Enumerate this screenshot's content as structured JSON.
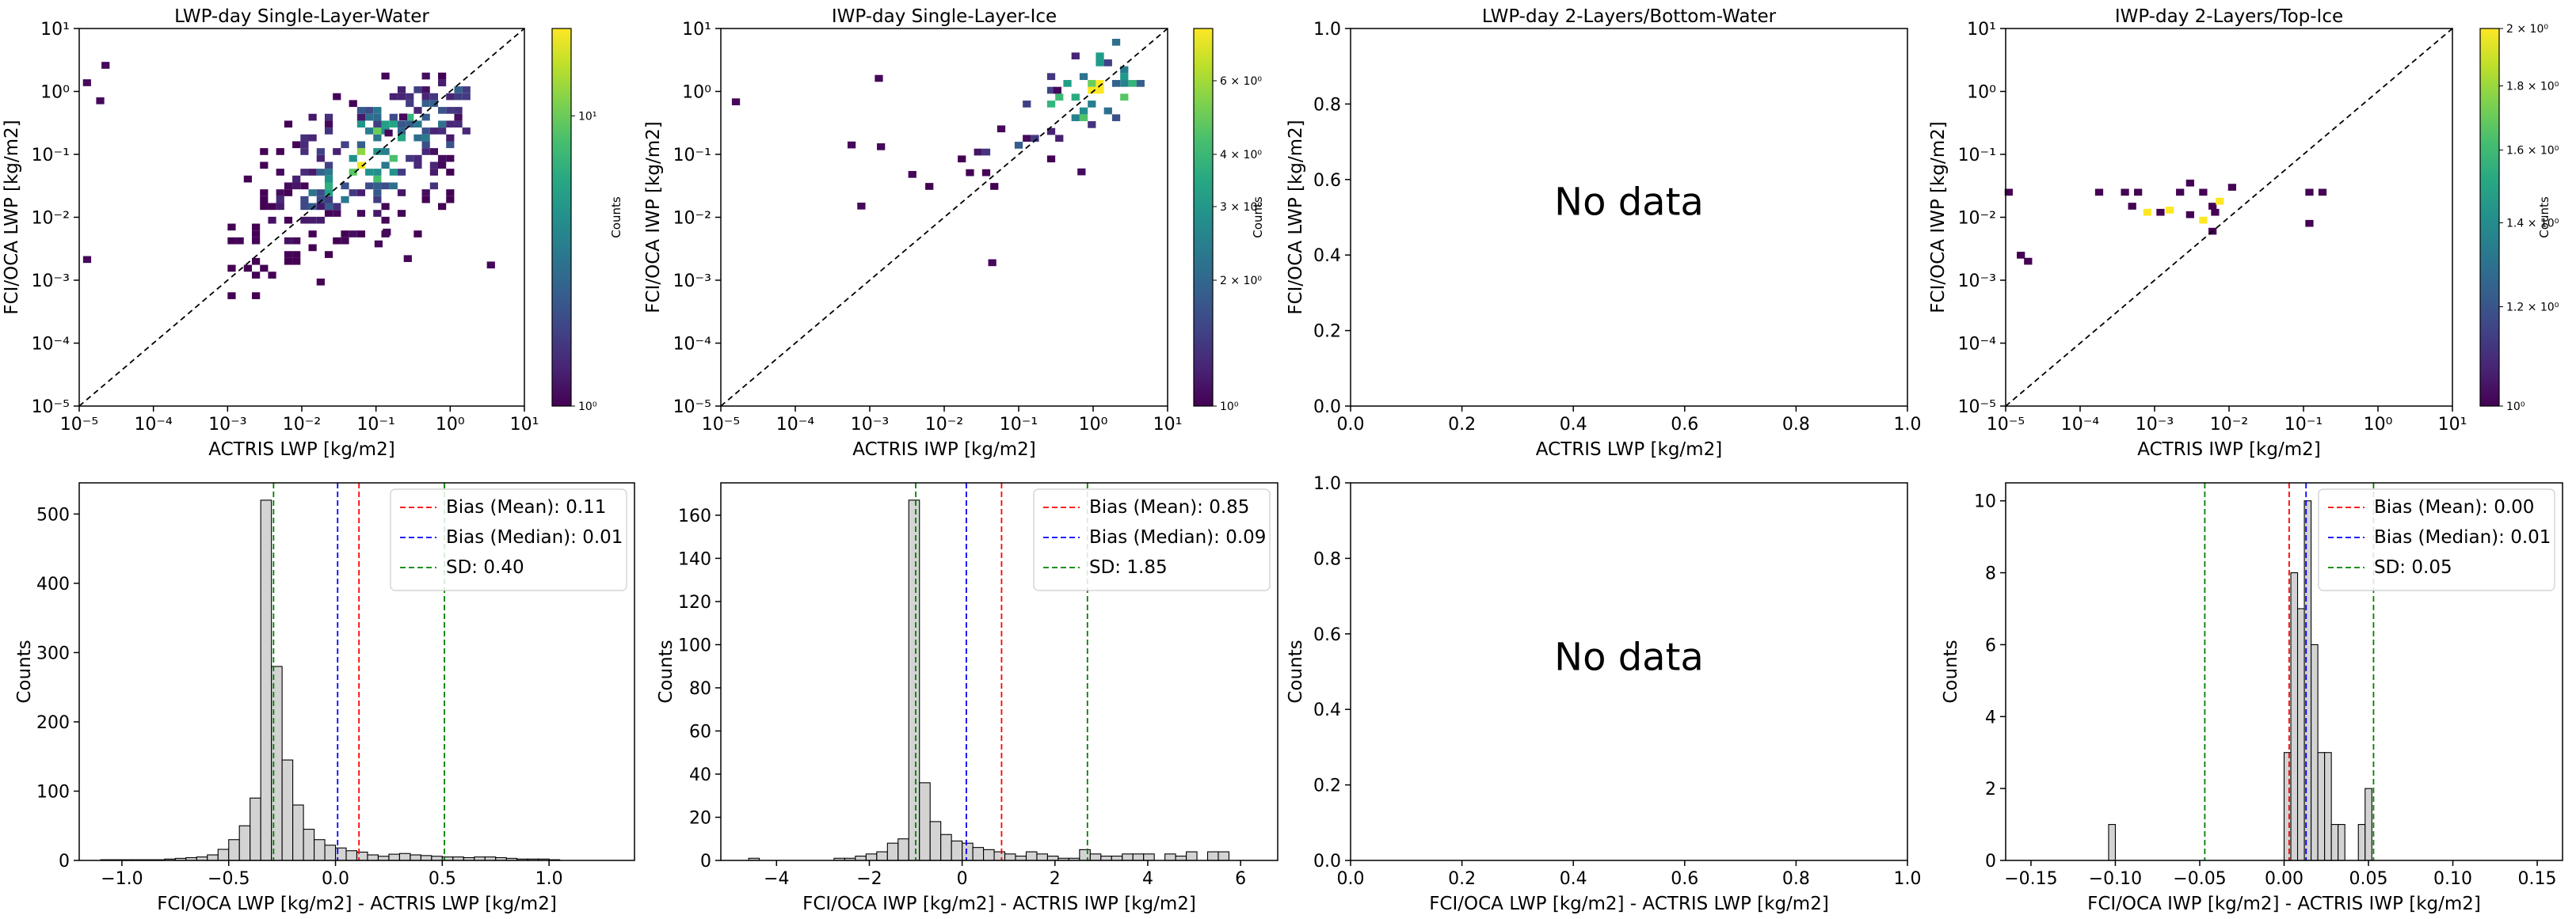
{
  "figure": {
    "colorbar_label": "Counts",
    "no_data_label": "No data"
  },
  "chart_data": [
    {
      "id": "p1",
      "type": "heatmap",
      "title": "LWP-day Single-Layer-Water",
      "xlabel": "ACTRIS LWP [kg/m2]",
      "ylabel": "FCI/OCA LWP [kg/m2]",
      "xlim": [
        1e-05,
        10
      ],
      "ylim": [
        1e-05,
        10
      ],
      "xscale": "log",
      "yscale": "log",
      "xticks": [
        "10^-5",
        "10^-4",
        "10^-3",
        "10^-2",
        "10^-1",
        "10^0",
        "10^1"
      ],
      "yticks": [
        "10^-5",
        "10^-4",
        "10^-3",
        "10^-2",
        "10^-1",
        "10^0",
        "10^1"
      ],
      "one_to_one_line": true,
      "colormap": "viridis",
      "colorbar": {
        "scale": "log",
        "range": [
          1,
          20
        ],
        "ticks": [
          "10^0",
          "10^1"
        ],
        "label": "Counts"
      },
      "cluster": {
        "x_range": [
          0.001,
          2
        ],
        "y_range": [
          0.0005,
          2
        ],
        "peak": [
          0.1,
          0.1
        ]
      }
    },
    {
      "id": "p2",
      "type": "heatmap",
      "title": "IWP-day Single-Layer-Ice",
      "xlabel": "ACTRIS IWP [kg/m2]",
      "ylabel": "FCI/OCA IWP [kg/m2]",
      "xlim": [
        1e-05,
        10
      ],
      "ylim": [
        1e-05,
        10
      ],
      "xscale": "log",
      "yscale": "log",
      "xticks": [
        "10^-5",
        "10^-4",
        "10^-3",
        "10^-2",
        "10^-1",
        "10^0",
        "10^1"
      ],
      "yticks": [
        "10^-5",
        "10^-4",
        "10^-3",
        "10^-2",
        "10^-1",
        "10^0",
        "10^1"
      ],
      "one_to_one_line": true,
      "colormap": "viridis",
      "colorbar": {
        "scale": "log",
        "range": [
          1,
          8
        ],
        "ticks": [
          "10^0",
          "2 × 10^0",
          "3 × 10^0",
          "4 × 10^0",
          "6 × 10^0"
        ],
        "label": "Counts"
      },
      "cluster": {
        "x_range": [
          0.0001,
          5
        ],
        "y_range": [
          0.01,
          7
        ],
        "peak": [
          1,
          1
        ]
      }
    },
    {
      "id": "p3",
      "type": "heatmap",
      "title": "LWP-day 2-Layers/Bottom-Water",
      "xlabel": "ACTRIS LWP [kg/m2]",
      "ylabel": "FCI/OCA LWP [kg/m2]",
      "xlim": [
        0,
        1
      ],
      "ylim": [
        0,
        1
      ],
      "xticks": [
        "0.0",
        "0.2",
        "0.4",
        "0.6",
        "0.8",
        "1.0"
      ],
      "yticks": [
        "0.0",
        "0.2",
        "0.4",
        "0.6",
        "0.8",
        "1.0"
      ],
      "annotation": "No data"
    },
    {
      "id": "p4",
      "type": "heatmap",
      "title": "IWP-day 2-Layers/Top-Ice",
      "xlabel": "ACTRIS IWP [kg/m2]",
      "ylabel": "FCI/OCA IWP [kg/m2]",
      "xlim": [
        1e-05,
        10
      ],
      "ylim": [
        1e-05,
        10
      ],
      "xscale": "log",
      "yscale": "log",
      "xticks": [
        "10^-5",
        "10^-4",
        "10^-3",
        "10^-2",
        "10^-1",
        "10^0",
        "10^1"
      ],
      "yticks": [
        "10^-5",
        "10^-4",
        "10^-3",
        "10^-2",
        "10^-1",
        "10^0",
        "10^1"
      ],
      "one_to_one_line": true,
      "colormap": "viridis",
      "colorbar": {
        "scale": "log",
        "range": [
          1,
          2
        ],
        "ticks": [
          "10^0",
          "1.2 × 10^0",
          "1.4 × 10^0",
          "1.6 × 10^0",
          "1.8 × 10^0",
          "2 × 10^0"
        ],
        "label": "Counts"
      },
      "points": [
        {
          "x": 1.1e-05,
          "y": 0.025,
          "c": 1
        },
        {
          "x": 1.6e-05,
          "y": 0.0025,
          "c": 1
        },
        {
          "x": 2e-05,
          "y": 0.002,
          "c": 1
        },
        {
          "x": 0.00018,
          "y": 0.025,
          "c": 1
        },
        {
          "x": 0.0004,
          "y": 0.025,
          "c": 1
        },
        {
          "x": 0.0006,
          "y": 0.025,
          "c": 1
        },
        {
          "x": 0.0005,
          "y": 0.015,
          "c": 1
        },
        {
          "x": 0.0008,
          "y": 0.012,
          "c": 2
        },
        {
          "x": 0.0012,
          "y": 0.012,
          "c": 1
        },
        {
          "x": 0.0016,
          "y": 0.013,
          "c": 2
        },
        {
          "x": 0.0022,
          "y": 0.025,
          "c": 1
        },
        {
          "x": 0.003,
          "y": 0.035,
          "c": 1
        },
        {
          "x": 0.003,
          "y": 0.011,
          "c": 1
        },
        {
          "x": 0.0045,
          "y": 0.025,
          "c": 1
        },
        {
          "x": 0.0045,
          "y": 0.009,
          "c": 2
        },
        {
          "x": 0.006,
          "y": 0.015,
          "c": 1
        },
        {
          "x": 0.0065,
          "y": 0.012,
          "c": 1
        },
        {
          "x": 0.0075,
          "y": 0.018,
          "c": 2
        },
        {
          "x": 0.006,
          "y": 0.006,
          "c": 1
        },
        {
          "x": 0.011,
          "y": 0.03,
          "c": 1
        },
        {
          "x": 0.12,
          "y": 0.025,
          "c": 1
        },
        {
          "x": 0.18,
          "y": 0.025,
          "c": 1
        },
        {
          "x": 0.12,
          "y": 0.008,
          "c": 1
        }
      ]
    },
    {
      "id": "p5",
      "type": "bar",
      "histogram": true,
      "xlabel": "FCI/OCA LWP [kg/m2] - ACTRIS LWP [kg/m2]",
      "ylabel": "Counts",
      "xlim": [
        -1.2,
        1.4
      ],
      "ylim": [
        0,
        545
      ],
      "xticks": [
        -1.0,
        -0.5,
        0.0,
        0.5,
        1.0
      ],
      "yticks": [
        0,
        100,
        200,
        300,
        400,
        500
      ],
      "bin_start": -1.1,
      "bin_width": 0.05,
      "values": [
        1,
        1,
        1,
        1,
        1,
        1,
        2,
        3,
        4,
        5,
        8,
        16,
        30,
        50,
        90,
        520,
        280,
        145,
        80,
        45,
        30,
        22,
        18,
        14,
        12,
        8,
        6,
        9,
        10,
        8,
        7,
        6,
        5,
        5,
        4,
        5,
        5,
        4,
        3,
        2,
        2,
        2,
        1
      ],
      "bias_mean": 0.11,
      "bias_median": 0.01,
      "sd": 0.4,
      "lines": [
        {
          "value": 0.11,
          "color": "#ff0000"
        },
        {
          "value": 0.01,
          "color": "#0000ff"
        },
        {
          "value": -0.29,
          "color": "#008000"
        },
        {
          "value": 0.51,
          "color": "#008000"
        }
      ],
      "legend": [
        "Bias (Mean): 0.11",
        "Bias (Median): 0.01",
        "SD: 0.40"
      ],
      "legend_position": "top-right"
    },
    {
      "id": "p6",
      "type": "bar",
      "histogram": true,
      "xlabel": "FCI/OCA IWP [kg/m2] - ACTRIS IWP [kg/m2]",
      "ylabel": "Counts",
      "xlim": [
        -5.2,
        6.8
      ],
      "ylim": [
        0,
        175
      ],
      "xticks": [
        -4,
        -2,
        0,
        2,
        4,
        6
      ],
      "yticks": [
        0,
        20,
        40,
        60,
        80,
        100,
        120,
        140,
        160
      ],
      "bin_start": -4.6,
      "bin_width": 0.23,
      "values": [
        1,
        0,
        0,
        0,
        0,
        0,
        0,
        0,
        1,
        1,
        2,
        3,
        4,
        8,
        10,
        167,
        36,
        18,
        12,
        9,
        8,
        6,
        5,
        4,
        3,
        2,
        4,
        3,
        2,
        1,
        1,
        5,
        3,
        2,
        2,
        3,
        3,
        3,
        0,
        3,
        2,
        4,
        0,
        4,
        4
      ],
      "bias_mean": 0.85,
      "bias_median": 0.09,
      "sd": 1.85,
      "lines": [
        {
          "value": 0.85,
          "color": "#ff0000"
        },
        {
          "value": 0.09,
          "color": "#0000ff"
        },
        {
          "value": -1.0,
          "color": "#008000"
        },
        {
          "value": 2.7,
          "color": "#008000"
        }
      ],
      "legend": [
        "Bias (Mean): 0.85",
        "Bias (Median): 0.09",
        "SD: 1.85"
      ],
      "legend_position": "top-right"
    },
    {
      "id": "p7",
      "type": "bar",
      "xlabel": "FCI/OCA LWP [kg/m2] - ACTRIS LWP [kg/m2]",
      "ylabel": "Counts",
      "xlim": [
        0,
        1
      ],
      "ylim": [
        0,
        1
      ],
      "xticks": [
        "0.0",
        "0.2",
        "0.4",
        "0.6",
        "0.8",
        "1.0"
      ],
      "yticks": [
        "0.0",
        "0.2",
        "0.4",
        "0.6",
        "0.8",
        "1.0"
      ],
      "annotation": "No data"
    },
    {
      "id": "p8",
      "type": "bar",
      "histogram": true,
      "xlabel": "FCI/OCA IWP [kg/m2] - ACTRIS IWP [kg/m2]",
      "ylabel": "Counts",
      "xlim": [
        -0.165,
        0.165
      ],
      "ylim": [
        0,
        10.5
      ],
      "xticks": [
        -0.15,
        -0.1,
        -0.05,
        0.0,
        0.05,
        0.1,
        0.15
      ],
      "yticks": [
        0,
        2,
        4,
        6,
        8,
        10
      ],
      "bins": [
        {
          "x0": -0.104,
          "x1": -0.1,
          "v": 1
        },
        {
          "x0": 0.0,
          "x1": 0.004,
          "v": 3
        },
        {
          "x0": 0.004,
          "x1": 0.008,
          "v": 8
        },
        {
          "x0": 0.008,
          "x1": 0.012,
          "v": 7
        },
        {
          "x0": 0.012,
          "x1": 0.016,
          "v": 10
        },
        {
          "x0": 0.016,
          "x1": 0.02,
          "v": 6
        },
        {
          "x0": 0.02,
          "x1": 0.024,
          "v": 3
        },
        {
          "x0": 0.024,
          "x1": 0.028,
          "v": 3
        },
        {
          "x0": 0.028,
          "x1": 0.032,
          "v": 1
        },
        {
          "x0": 0.032,
          "x1": 0.036,
          "v": 1
        },
        {
          "x0": 0.044,
          "x1": 0.048,
          "v": 1
        },
        {
          "x0": 0.048,
          "x1": 0.052,
          "v": 2
        }
      ],
      "bias_mean": 0.0,
      "bias_median": 0.01,
      "sd": 0.05,
      "lines": [
        {
          "value": 0.003,
          "color": "#ff0000"
        },
        {
          "value": 0.013,
          "color": "#0000ff"
        },
        {
          "value": -0.047,
          "color": "#008000"
        },
        {
          "value": 0.053,
          "color": "#008000"
        }
      ],
      "legend": [
        "Bias (Mean): 0.00",
        "Bias (Median): 0.01",
        "SD: 0.05"
      ],
      "legend_position": "top-right"
    }
  ]
}
